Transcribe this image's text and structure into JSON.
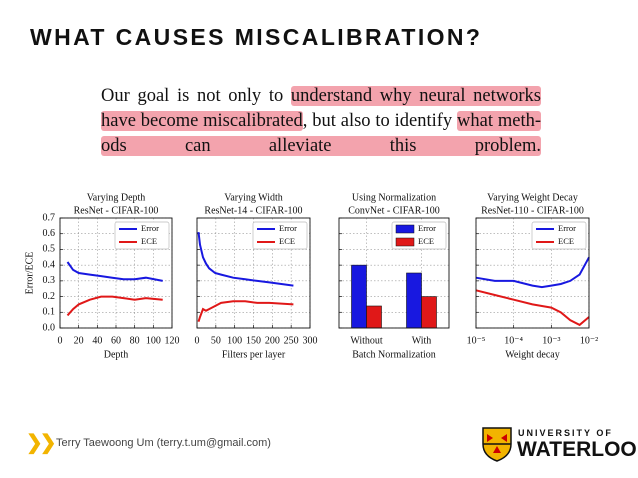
{
  "slide": {
    "title": "WHAT CAUSES MISCALIBRATION?",
    "paragraph": [
      [
        {
          "text": "Our goal is not only to ",
          "highlight": false
        },
        {
          "text": "understand why neural networks",
          "highlight": true
        }
      ],
      [
        {
          "text": "have become miscalibrated",
          "highlight": true
        },
        {
          "text": ", but also to identify ",
          "highlight": false
        },
        {
          "text": "what meth-",
          "highlight": true
        }
      ],
      [
        {
          "text": "ods can alleviate this problem.",
          "highlight": true
        }
      ]
    ],
    "footer": "Terry Taewoong Um (terry.t.um@gmail.com)",
    "logo_line1": "UNIVERSITY OF",
    "logo_line2": "WATERLOO"
  },
  "chart_data": [
    {
      "type": "line",
      "title": "Varying Depth",
      "subtitle": "ResNet - CIFAR-100",
      "xlabel": "Depth",
      "ylabel": "Error/ECE",
      "xlim": [
        0,
        120
      ],
      "xticks": [
        0,
        20,
        40,
        60,
        80,
        100,
        120
      ],
      "ylim": [
        0,
        0.7
      ],
      "yticks": [
        {
          "value": 0,
          "label": "0.0"
        },
        0.1,
        0.2,
        0.3,
        0.4,
        0.5,
        0.6,
        0.7
      ],
      "grid": true,
      "legend": "upper right",
      "x": [
        8,
        14,
        20,
        32,
        44,
        56,
        68,
        80,
        92,
        110
      ],
      "series": [
        {
          "name": "Error",
          "color": "#1818e0",
          "values": [
            0.42,
            0.37,
            0.35,
            0.34,
            0.33,
            0.32,
            0.31,
            0.31,
            0.32,
            0.3
          ]
        },
        {
          "name": "ECE",
          "color": "#e01818",
          "values": [
            0.08,
            0.12,
            0.15,
            0.18,
            0.2,
            0.2,
            0.19,
            0.18,
            0.19,
            0.18
          ]
        }
      ]
    },
    {
      "type": "line",
      "title": "Varying Width",
      "subtitle": "ResNet-14 - CIFAR-100",
      "xlabel": "Filters per layer",
      "xlim": [
        0,
        300
      ],
      "xticks": [
        0,
        50,
        100,
        150,
        200,
        250,
        300
      ],
      "ylim": [
        0,
        0.7
      ],
      "yticks": [
        0,
        0.1,
        0.2,
        0.3,
        0.4,
        0.5,
        0.6,
        0.7
      ],
      "shared_y": true,
      "grid": true,
      "legend": "upper right",
      "x": [
        4,
        8,
        16,
        24,
        32,
        48,
        64,
        96,
        128,
        160,
        192,
        256
      ],
      "series": [
        {
          "name": "Error",
          "color": "#1818e0",
          "values": [
            0.61,
            0.53,
            0.45,
            0.41,
            0.38,
            0.35,
            0.34,
            0.32,
            0.31,
            0.3,
            0.29,
            0.27
          ]
        },
        {
          "name": "ECE",
          "color": "#e01818",
          "values": [
            0.04,
            0.07,
            0.12,
            0.11,
            0.12,
            0.14,
            0.16,
            0.17,
            0.17,
            0.16,
            0.16,
            0.15
          ]
        }
      ]
    },
    {
      "type": "bar",
      "title": "Using Normalization",
      "subtitle": "ConvNet - CIFAR-100",
      "xlabel": "Batch Normalization",
      "categories": [
        "Without",
        "With"
      ],
      "ylim": [
        0,
        0.7
      ],
      "yticks": [
        0,
        0.1,
        0.2,
        0.3,
        0.4,
        0.5,
        0.6,
        0.7
      ],
      "shared_y": true,
      "grid": true,
      "legend": "upper right",
      "series": [
        {
          "name": "Error",
          "color": "#1818e0",
          "values": [
            0.4,
            0.35
          ]
        },
        {
          "name": "ECE",
          "color": "#e01818",
          "values": [
            0.14,
            0.2
          ]
        }
      ]
    },
    {
      "type": "line",
      "title": "Varying Weight Decay",
      "subtitle": "ResNet-110 - CIFAR-100",
      "xlabel": "Weight decay",
      "xscale": "log",
      "xlim": [
        1e-05,
        0.01
      ],
      "xticks": [
        {
          "value": 1e-05,
          "label": "10⁻⁵"
        },
        {
          "value": 0.0001,
          "label": "10⁻⁴"
        },
        {
          "value": 0.001,
          "label": "10⁻³"
        },
        {
          "value": 0.01,
          "label": "10⁻²"
        }
      ],
      "ylim": [
        0,
        0.7
      ],
      "yticks": [
        0,
        0.1,
        0.2,
        0.3,
        0.4,
        0.5,
        0.6,
        0.7
      ],
      "shared_y": true,
      "grid": true,
      "legend": "upper right",
      "x": [
        1e-05,
        3.16e-05,
        0.0001,
        0.000316,
        0.000562,
        0.001,
        0.00178,
        0.00316,
        0.00562,
        0.01
      ],
      "series": [
        {
          "name": "Error",
          "color": "#1818e0",
          "values": [
            0.32,
            0.3,
            0.3,
            0.27,
            0.26,
            0.27,
            0.28,
            0.3,
            0.34,
            0.45
          ]
        },
        {
          "name": "ECE",
          "color": "#e01818",
          "values": [
            0.24,
            0.21,
            0.18,
            0.15,
            0.14,
            0.13,
            0.1,
            0.05,
            0.02,
            0.07
          ]
        }
      ]
    }
  ]
}
